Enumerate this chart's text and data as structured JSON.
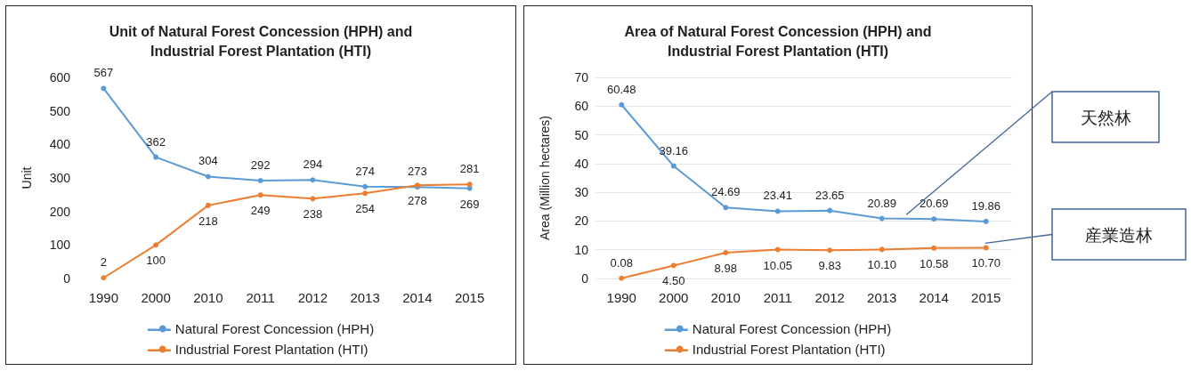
{
  "chart_data": [
    {
      "type": "line",
      "title": "Unit of Natural Forest Concession (HPH) and\nIndustrial Forest Plantation (HTI)",
      "ylabel": "Unit",
      "categories": [
        "1990",
        "2000",
        "2010",
        "2011",
        "2012",
        "2013",
        "2014",
        "2015"
      ],
      "series": [
        {
          "name": "Natural Forest Concession (HPH)",
          "color": "#5b9bd5",
          "values": [
            567,
            362,
            304,
            292,
            294,
            274,
            273,
            269
          ]
        },
        {
          "name": "Industrial Forest Plantation (HTI)",
          "color": "#ed7d31",
          "values": [
            2,
            100,
            218,
            249,
            238,
            254,
            278,
            281
          ]
        }
      ],
      "ylim": [
        0,
        600
      ],
      "yticks": [
        0,
        100,
        200,
        300,
        400,
        500,
        600
      ],
      "grid": false,
      "legend": "bottom",
      "marker": "circle",
      "line_style": "solid",
      "data_labels": true
    },
    {
      "type": "line",
      "title": "Area of Natural Forest Concession (HPH) and\nIndustrial Forest Plantation (HTI)",
      "ylabel": "Area (Million hectares)",
      "categories": [
        "1990",
        "2000",
        "2010",
        "2011",
        "2012",
        "2013",
        "2014",
        "2015"
      ],
      "series": [
        {
          "name": "Natural Forest Concession (HPH)",
          "color": "#5b9bd5",
          "values": [
            60.48,
            39.16,
            24.69,
            23.41,
            23.65,
            20.89,
            20.69,
            19.86
          ]
        },
        {
          "name": "Industrial Forest Plantation (HTI)",
          "color": "#ed7d31",
          "values": [
            0.08,
            4.5,
            8.98,
            10.05,
            9.83,
            10.1,
            10.58,
            10.7
          ]
        }
      ],
      "value_labels": [
        [
          "60.48",
          "39.16",
          "24.69",
          "23.41",
          "23.65",
          "20.89",
          "20.69",
          "19.86"
        ],
        [
          "0.08",
          "4.50",
          "8.98",
          "10.05",
          "9.83",
          "10.10",
          "10.58",
          "10.70"
        ]
      ],
      "ylim": [
        0,
        70
      ],
      "yticks": [
        0,
        10,
        20,
        30,
        40,
        50,
        60,
        70
      ],
      "grid": "y",
      "legend": "bottom",
      "marker": "circle",
      "line_style": "solid",
      "annotations": [
        "天然林",
        "産業造林"
      ]
    }
  ]
}
